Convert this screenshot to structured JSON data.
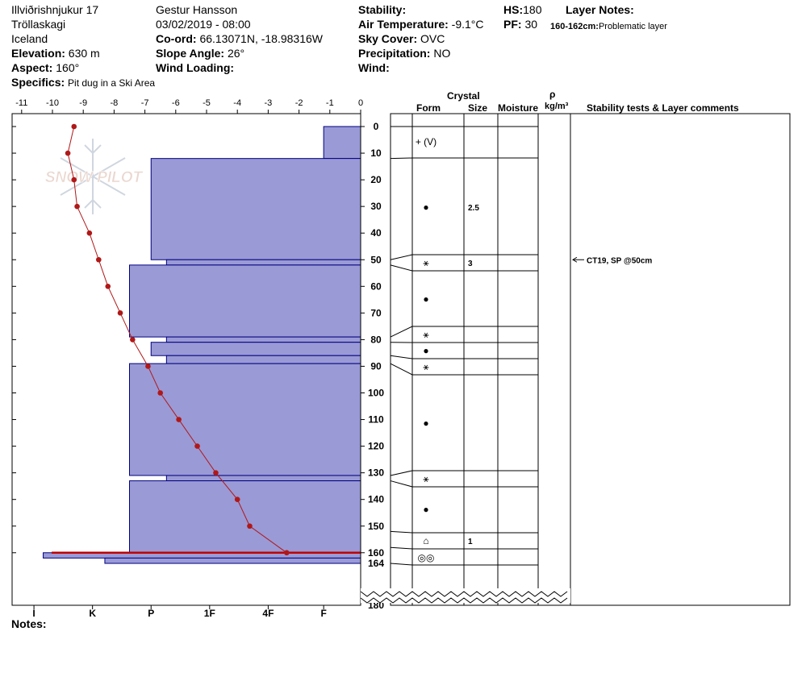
{
  "header": {
    "location": "Illviðrishnjukur 17",
    "region": "Tröllaskagi",
    "country": "Iceland",
    "elevation_label": "Elevation:",
    "elevation_value": "630 m",
    "aspect_label": "Aspect:",
    "aspect_value": "160°",
    "specifics_label": "Specifics:",
    "specifics_value": "Pit dug in a Ski Area",
    "observer": "Gestur Hansson",
    "datetime": "03/02/2019 - 08:00",
    "coord_label": "Co-ord:",
    "coord_value": "66.13071N, -18.98316W",
    "slope_label": "Slope Angle:",
    "slope_value": "26°",
    "wind_loading_label": "Wind Loading:",
    "stability_label": "Stability:",
    "air_temp_label": "Air Temperature:",
    "air_temp_value": "-9.1°C",
    "sky_label": "Sky Cover:",
    "sky_value": "OVC",
    "precip_label": "Precipitation:",
    "precip_value": "NO",
    "wind_label": "Wind:",
    "hs_label": "HS:",
    "hs_value": "180",
    "pf_label": "PF:",
    "pf_value": "30",
    "layer_notes_label": "Layer Notes:",
    "layer_note_depth": "160-162cm:",
    "layer_note_text": "Problematic layer"
  },
  "notes_label": "Notes:",
  "watermark": "SNOW PILOT",
  "columns": {
    "crystal": "Crystal",
    "form": "Form",
    "size": "Size",
    "moisture": "Moisture",
    "rho": "ρ",
    "density_unit": "kg/m³",
    "stability_comments": "Stability tests & Layer comments"
  },
  "colors": {
    "hardness_fill": "#9a9ad6",
    "hardness_stroke": "#000080",
    "temperature": "#b01818",
    "problem_layer": "#c00000"
  },
  "chart_data": {
    "type": "snow_profile",
    "temperature_axis": {
      "ticks": [
        -11,
        -10,
        -9,
        -8,
        -7,
        -6,
        -5,
        -4,
        -3,
        -2,
        -1,
        0
      ],
      "range": [
        -11.4,
        0
      ]
    },
    "hardness_axis": {
      "ticks": [
        "I",
        "K",
        "P",
        "1F",
        "4F",
        "F"
      ],
      "tick_values": [
        -10.6,
        -8.7,
        -6.8,
        -4.9,
        -3.0,
        -1.2
      ]
    },
    "depth_axis": {
      "ticks": [
        0,
        10,
        20,
        30,
        40,
        50,
        60,
        70,
        80,
        90,
        100,
        110,
        120,
        130,
        140,
        150,
        160
      ],
      "range": [
        0,
        164
      ],
      "extra_ticks": [
        "164",
        "180"
      ]
    },
    "hardness_layers": [
      {
        "top": 0,
        "bottom": 12,
        "value": -1.2
      },
      {
        "top": 12,
        "bottom": 50,
        "value": -6.8
      },
      {
        "top": 50,
        "bottom": 52,
        "value": -6.3
      },
      {
        "top": 52,
        "bottom": 79,
        "value": -7.5
      },
      {
        "top": 79,
        "bottom": 81,
        "value": -6.3
      },
      {
        "top": 81,
        "bottom": 86,
        "value": -6.8
      },
      {
        "top": 86,
        "bottom": 89,
        "value": -6.3
      },
      {
        "top": 89,
        "bottom": 131,
        "value": -7.5
      },
      {
        "top": 131,
        "bottom": 133,
        "value": -6.3
      },
      {
        "top": 133,
        "bottom": 160,
        "value": -7.5
      },
      {
        "top": 160,
        "bottom": 162,
        "value": -10.3
      },
      {
        "top": 162,
        "bottom": 164,
        "value": -8.3
      }
    ],
    "problem_layer_depth": 160,
    "temperature_profile": [
      {
        "depth": 0,
        "temp": -9.3
      },
      {
        "depth": 10,
        "temp": -9.5
      },
      {
        "depth": 20,
        "temp": -9.3
      },
      {
        "depth": 30,
        "temp": -9.2
      },
      {
        "depth": 40,
        "temp": -8.8
      },
      {
        "depth": 50,
        "temp": -8.5
      },
      {
        "depth": 60,
        "temp": -8.2
      },
      {
        "depth": 70,
        "temp": -7.8
      },
      {
        "depth": 80,
        "temp": -7.4
      },
      {
        "depth": 90,
        "temp": -6.9
      },
      {
        "depth": 100,
        "temp": -6.5
      },
      {
        "depth": 110,
        "temp": -5.9
      },
      {
        "depth": 120,
        "temp": -5.3
      },
      {
        "depth": 130,
        "temp": -4.7
      },
      {
        "depth": 140,
        "temp": -4.0
      },
      {
        "depth": 150,
        "temp": -3.6
      },
      {
        "depth": 160,
        "temp": -2.4
      }
    ],
    "layer_boundaries": [
      0,
      12,
      50,
      52,
      79,
      81,
      86,
      89,
      131,
      133,
      152,
      158,
      164
    ],
    "layer_symbols": [
      {
        "depth": 6,
        "symbol": "+ (V)",
        "size": ""
      },
      {
        "depth": 30,
        "symbol": "●",
        "size": "2.5"
      },
      {
        "depth": 51,
        "symbol": "⚹",
        "size": "3"
      },
      {
        "depth": 65,
        "symbol": "●",
        "size": ""
      },
      {
        "depth": 77,
        "symbol": "⚹",
        "size": ""
      },
      {
        "depth": 84,
        "symbol": "●",
        "size": ""
      },
      {
        "depth": 89,
        "symbol": "⚹",
        "size": ""
      },
      {
        "depth": 111,
        "symbol": "●",
        "size": ""
      },
      {
        "depth": 131,
        "symbol": "⚹",
        "size": ""
      },
      {
        "depth": 143,
        "symbol": "●",
        "size": ""
      },
      {
        "depth": 155,
        "symbol": "⌂",
        "size": "1"
      },
      {
        "depth": 161,
        "symbol": "◎◎",
        "size": ""
      }
    ],
    "stability_tests": [
      {
        "depth": 50,
        "text": "CT19, SP @50cm"
      }
    ]
  }
}
